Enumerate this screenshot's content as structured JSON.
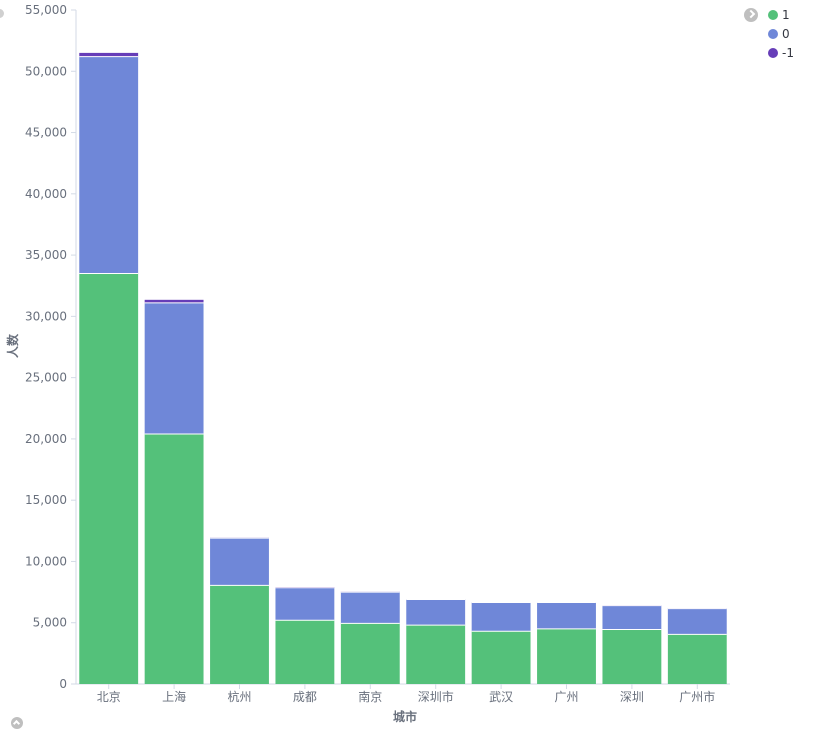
{
  "chart_data": {
    "type": "bar",
    "stacked": true,
    "title": "",
    "xlabel": "城市",
    "ylabel": "人数",
    "ylim": [
      0,
      55000
    ],
    "yticks": [
      0,
      5000,
      10000,
      15000,
      20000,
      25000,
      30000,
      35000,
      40000,
      45000,
      50000,
      55000
    ],
    "ytick_labels": [
      "0",
      "5,000",
      "10,000",
      "15,000",
      "20,000",
      "25,000",
      "30,000",
      "35,000",
      "40,000",
      "45,000",
      "50,000",
      "55,000"
    ],
    "categories": [
      "北京",
      "上海",
      "杭州",
      "成都",
      "南京",
      "深圳市",
      "武汉",
      "广州",
      "深圳",
      "广州市"
    ],
    "series": [
      {
        "name": "1",
        "color": "#54c17a",
        "values": [
          33500,
          20400,
          8050,
          5200,
          4950,
          4800,
          4300,
          4500,
          4450,
          4050
        ]
      },
      {
        "name": "0",
        "color": "#6f87d8",
        "values": [
          17700,
          10700,
          3850,
          2650,
          2550,
          2100,
          2350,
          2150,
          1950,
          2100
        ]
      },
      {
        "name": "-1",
        "color": "#663db8",
        "values": [
          300,
          250,
          50,
          60,
          40,
          30,
          30,
          30,
          30,
          30
        ]
      }
    ],
    "legend_position": "top-right",
    "grid": false
  }
}
